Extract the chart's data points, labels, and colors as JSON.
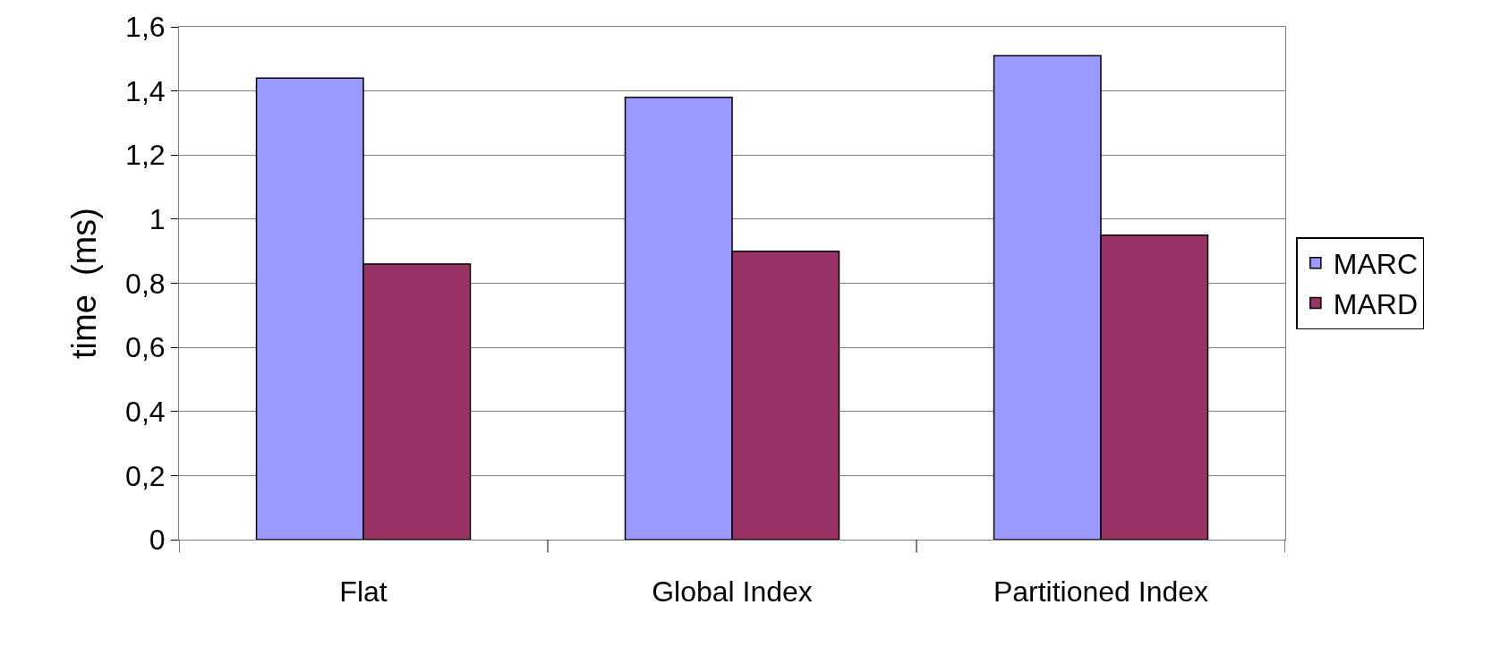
{
  "chart_data": {
    "type": "bar",
    "ylabel": "time  (ms)",
    "categories": [
      "Flat",
      "Global Index",
      "Partitioned Index"
    ],
    "series": [
      {
        "name": "MARC",
        "color": "#9999ff",
        "values": [
          1.44,
          1.38,
          1.51
        ]
      },
      {
        "name": "MARD",
        "color": "#993366",
        "values": [
          0.86,
          0.9,
          0.95
        ]
      }
    ],
    "ylim": [
      0,
      1.6
    ],
    "yticks": [
      0,
      {
        "value": 0.2,
        "label": "0,2"
      },
      {
        "value": 0.4,
        "label": "0,4"
      },
      {
        "value": 0.6,
        "label": "0,6"
      },
      {
        "value": 0.8,
        "label": "0,8"
      },
      1,
      {
        "value": 1.2,
        "label": "1,2"
      },
      {
        "value": 1.4,
        "label": "1,4"
      },
      {
        "value": 1.6,
        "label": "1,6"
      }
    ],
    "grid": "y",
    "legend": "right"
  }
}
